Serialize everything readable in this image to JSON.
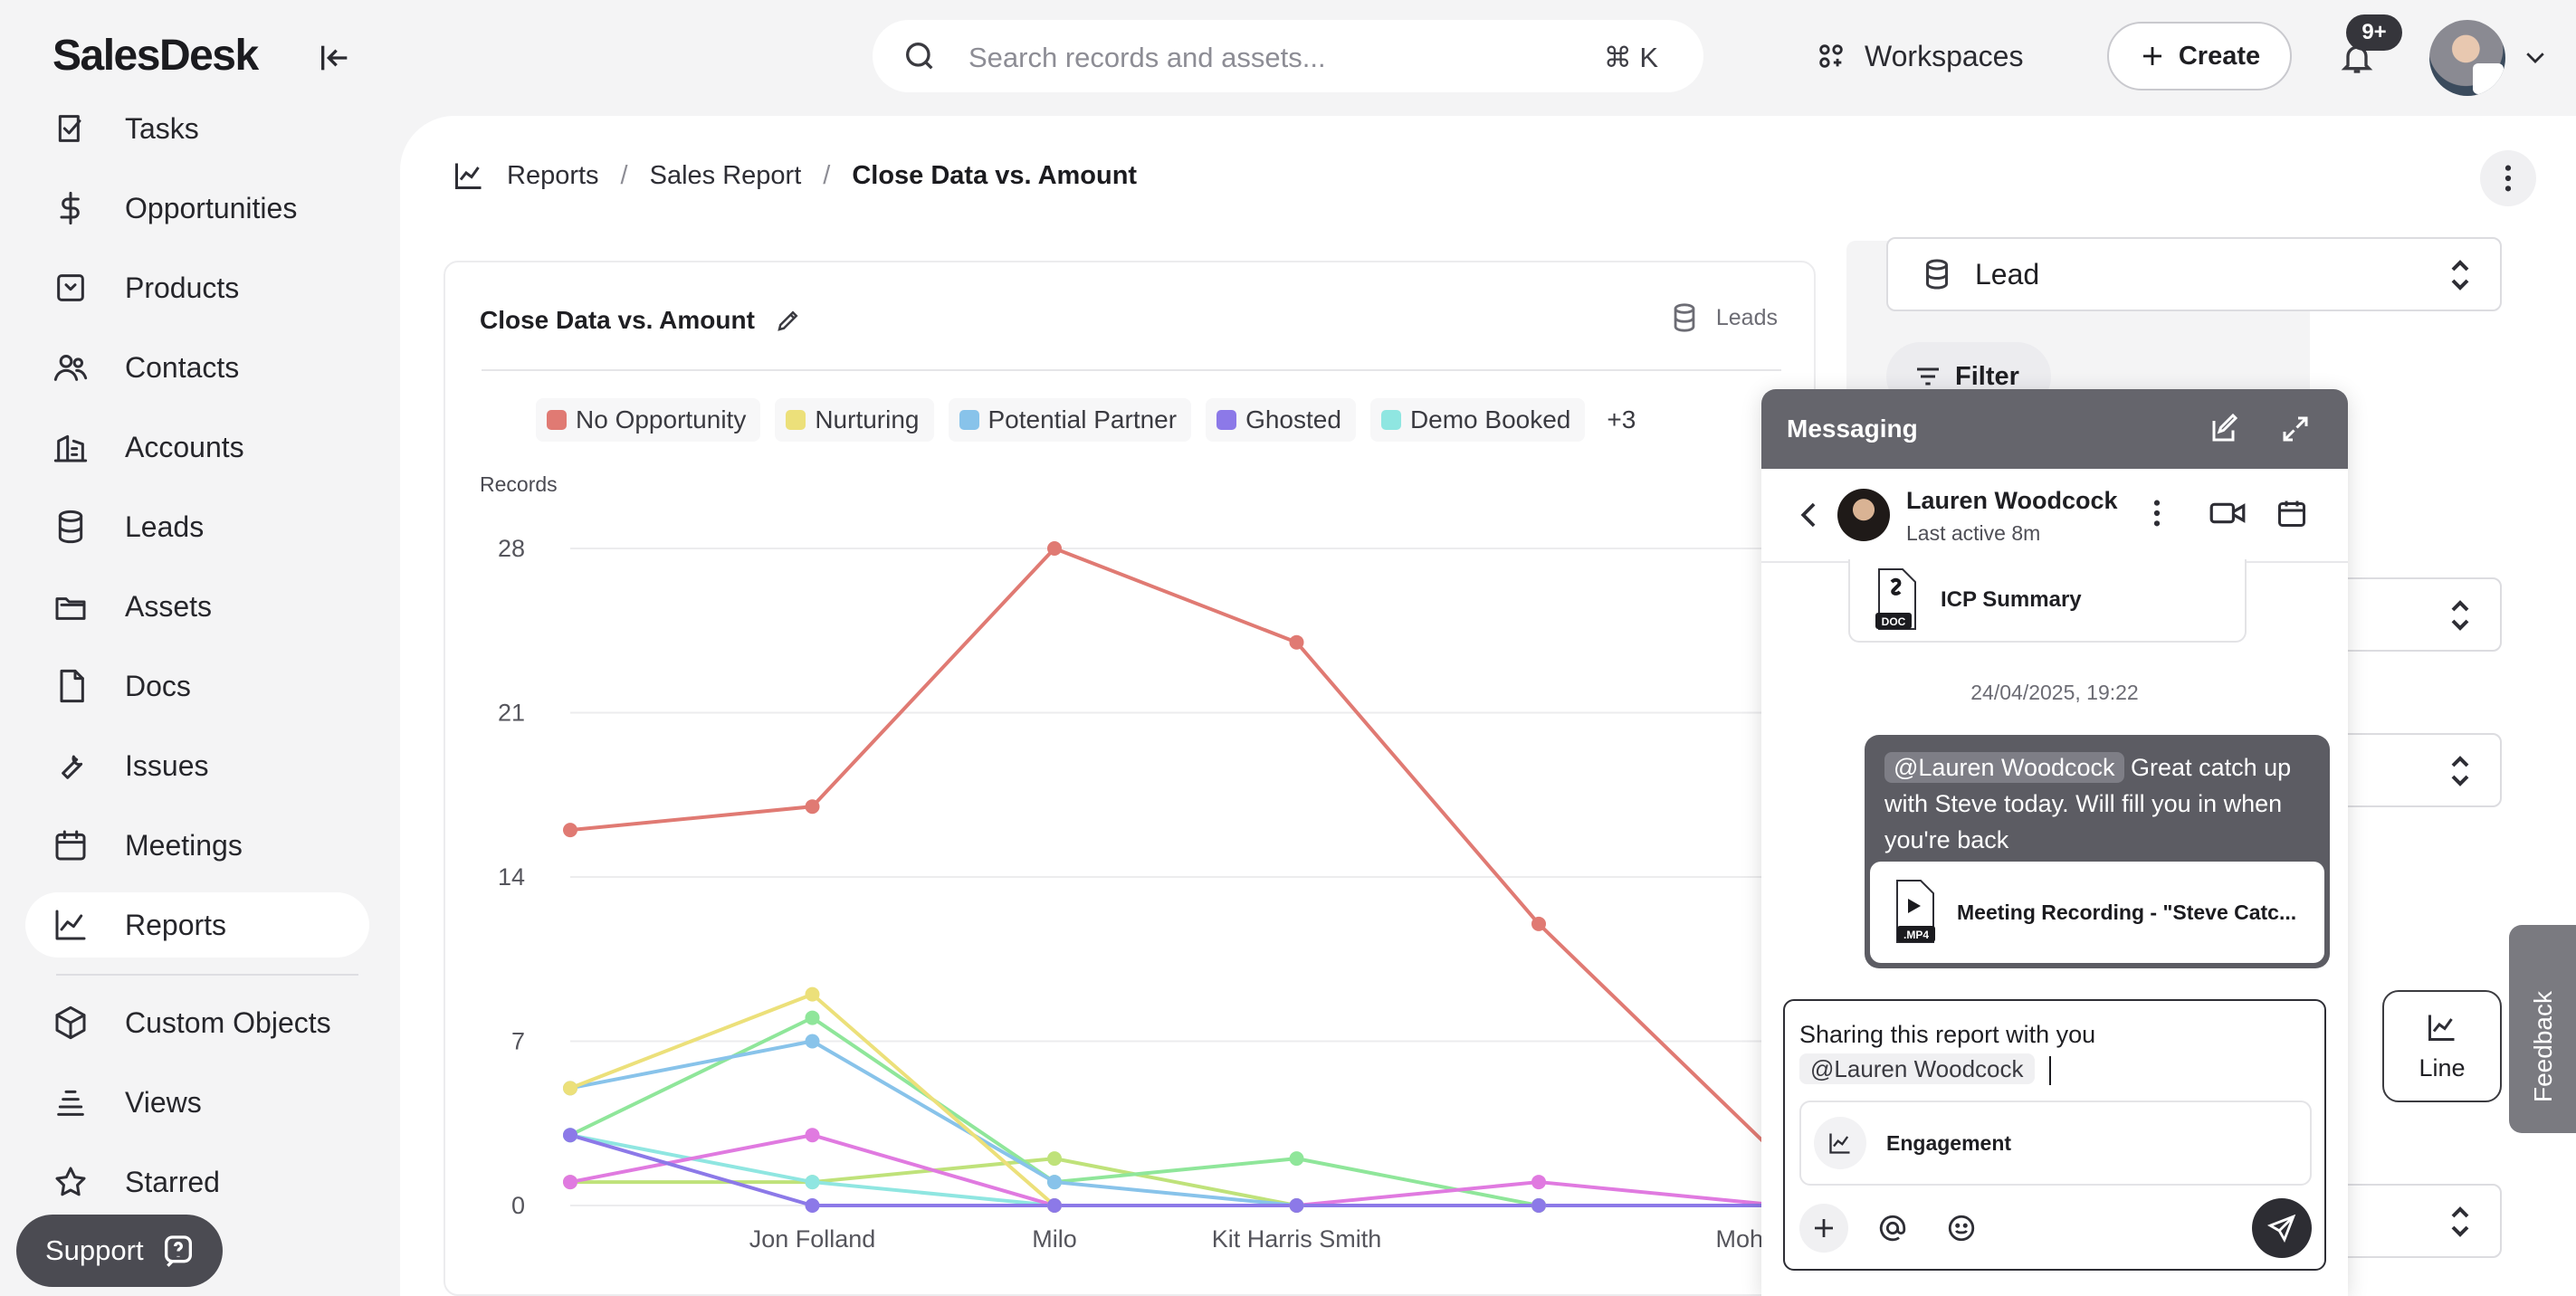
{
  "app": {
    "name": "SalesDesk"
  },
  "search": {
    "placeholder": "Search records and assets...",
    "shortcut": "⌘ K"
  },
  "topbar": {
    "workspaces_label": "Workspaces",
    "create_label": "Create",
    "notifications_badge": "9+"
  },
  "sidebar": {
    "items": [
      {
        "label": "Tasks",
        "icon": "tasks-icon"
      },
      {
        "label": "Opportunities",
        "icon": "dollar-icon"
      },
      {
        "label": "Products",
        "icon": "box-icon"
      },
      {
        "label": "Contacts",
        "icon": "users-icon"
      },
      {
        "label": "Accounts",
        "icon": "building-icon"
      },
      {
        "label": "Leads",
        "icon": "database-icon"
      },
      {
        "label": "Assets",
        "icon": "folder-icon"
      },
      {
        "label": "Docs",
        "icon": "doc-icon"
      },
      {
        "label": "Issues",
        "icon": "wrench-icon"
      },
      {
        "label": "Meetings",
        "icon": "calendar-icon"
      },
      {
        "label": "Reports",
        "icon": "chart-icon",
        "active": true
      },
      {
        "label": "Custom Objects",
        "icon": "cube-icon"
      },
      {
        "label": "Views",
        "icon": "layers-icon"
      },
      {
        "label": "Starred",
        "icon": "star-icon"
      }
    ],
    "support_label": "Support"
  },
  "breadcrumb": {
    "root": "Reports",
    "parent": "Sales Report",
    "current": "Close Data vs. Amount"
  },
  "report_card": {
    "title": "Close Data vs. Amount",
    "source": "Leads",
    "legend": [
      {
        "label": "No Opportunity",
        "color": "#e07a73"
      },
      {
        "label": "Nurturing",
        "color": "#ece07a"
      },
      {
        "label": "Potential Partner",
        "color": "#88c3ea"
      },
      {
        "label": "Ghosted",
        "color": "#8c79e8"
      },
      {
        "label": "Demo Booked",
        "color": "#8fe6e1"
      }
    ],
    "legend_more": "+3",
    "y_axis_title": "Records"
  },
  "chart_data": {
    "type": "line",
    "ylabel": "Records",
    "ylim": [
      0,
      28
    ],
    "y_ticks": [
      0,
      7,
      14,
      21,
      28
    ],
    "categories": [
      "",
      "Jon Folland",
      "Milo",
      "Kit Harris Smith",
      "",
      "Mohit Kuma"
    ],
    "series": [
      {
        "name": "No Opportunity",
        "color": "#e07a73",
        "values": [
          16,
          17,
          28,
          24,
          12,
          2
        ]
      },
      {
        "name": "Nurturing",
        "color": "#ece07a",
        "values": [
          5,
          9,
          0,
          0,
          0,
          0
        ]
      },
      {
        "name": "Potential Partner",
        "color": "#88c3ea",
        "values": [
          5,
          7,
          1,
          0,
          0,
          0
        ]
      },
      {
        "name": "Ghosted",
        "color": "#8c79e8",
        "values": [
          3,
          0,
          0,
          0,
          0,
          0
        ]
      },
      {
        "name": "Demo Booked",
        "color": "#8fe6e1",
        "values": [
          3,
          1,
          0,
          0,
          0,
          0
        ]
      },
      {
        "color": "#8fe69a",
        "values": [
          3,
          8,
          1,
          2,
          0,
          0
        ]
      },
      {
        "color": "#bfe27a",
        "values": [
          1,
          1,
          2,
          0,
          0,
          0
        ]
      },
      {
        "color": "#e07ae0",
        "values": [
          1,
          3,
          0,
          0,
          1,
          0
        ]
      }
    ]
  },
  "settings": {
    "object_select": "Lead",
    "filter_label": "Filter",
    "chart_type_label": "Line",
    "feedback_label": "Feedback"
  },
  "messaging": {
    "title": "Messaging",
    "contact_name": "Lauren Woodcock",
    "contact_status": "Last active 8m",
    "doc_attachment": {
      "name": "ICP Summary",
      "ext": "DOC"
    },
    "timestamp": "24/04/2025, 19:22",
    "message": {
      "mention": "@Lauren Woodcock",
      "text": " Great catch up with Steve today. Will fill you in when you're back",
      "attachment": {
        "name": "Meeting Recording - \"Steve Catc...",
        "ext": ".MP4"
      }
    },
    "compose": {
      "line1": "Sharing this report with you",
      "mention": "@Lauren Woodcock",
      "chip_label": "Engagement"
    }
  }
}
